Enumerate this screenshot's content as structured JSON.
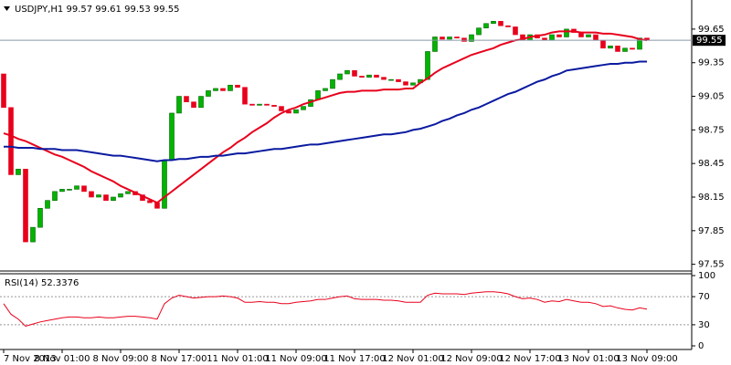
{
  "chart_data": [
    {
      "type": "candlestick",
      "title": "USDJPY,H1  99.57 99.61 99.53 99.55",
      "categories": [
        "7 Nov 2013",
        null,
        null,
        null,
        null,
        null,
        null,
        null,
        "8 Nov 01:00",
        null,
        null,
        null,
        null,
        null,
        null,
        null,
        "8 Nov 09:00",
        null,
        null,
        null,
        null,
        null,
        null,
        null,
        "8 Nov 17:00",
        null,
        null,
        null,
        null,
        null,
        null,
        null,
        "11 Nov 01:00",
        null,
        null,
        null,
        null,
        null,
        null,
        null,
        "11 Nov 09:00",
        null,
        null,
        null,
        null,
        null,
        null,
        null,
        "11 Nov 17:00",
        null,
        null,
        null,
        null,
        null,
        null,
        null,
        "12 Nov 01:00",
        null,
        null,
        null,
        null,
        null,
        null,
        null,
        "12 Nov 09:00",
        null,
        null,
        null,
        null,
        null,
        null,
        null,
        "12 Nov 17:00",
        null,
        null,
        null,
        null,
        null,
        null,
        null,
        "13 Nov 01:00",
        null,
        null,
        null,
        null,
        null,
        null,
        null,
        "13 Nov 09:00"
      ],
      "open": [
        99.25,
        98.95,
        98.35,
        98.4,
        97.75,
        97.88,
        98.05,
        98.12,
        98.2,
        98.22,
        98.22,
        98.25,
        98.2,
        98.15,
        98.17,
        98.12,
        98.15,
        98.18,
        98.2,
        98.17,
        98.12,
        98.1,
        98.05,
        98.48,
        98.9,
        99.05,
        99.0,
        98.95,
        99.05,
        99.1,
        99.12,
        99.1,
        99.15,
        99.13,
        98.98,
        98.97,
        98.98,
        98.97,
        98.96,
        98.92,
        98.9,
        98.93,
        98.96,
        99.02,
        99.1,
        99.12,
        99.2,
        99.25,
        99.28,
        99.23,
        99.22,
        99.24,
        99.22,
        99.2,
        99.2,
        99.18,
        99.15,
        99.17,
        99.2,
        99.45,
        99.58,
        99.56,
        99.58,
        99.57,
        99.54,
        99.6,
        99.66,
        99.7,
        99.72,
        99.68,
        99.67,
        99.6,
        99.55,
        99.6,
        99.57,
        99.55,
        99.6,
        99.58,
        99.65,
        99.62,
        99.58,
        99.6,
        99.55,
        99.48,
        99.5,
        99.45,
        99.48,
        99.47,
        99.57
      ],
      "close": [
        98.95,
        98.35,
        98.4,
        97.75,
        97.88,
        98.05,
        98.12,
        98.2,
        98.22,
        98.22,
        98.25,
        98.2,
        98.15,
        98.17,
        98.12,
        98.15,
        98.18,
        98.2,
        98.17,
        98.12,
        98.1,
        98.05,
        98.48,
        98.9,
        99.05,
        99.0,
        98.95,
        99.05,
        99.1,
        99.12,
        99.1,
        99.15,
        99.13,
        98.98,
        98.97,
        98.98,
        98.97,
        98.96,
        98.92,
        98.9,
        98.93,
        98.96,
        99.02,
        99.1,
        99.12,
        99.2,
        99.25,
        99.28,
        99.23,
        99.22,
        99.24,
        99.22,
        99.2,
        99.2,
        99.18,
        99.15,
        99.17,
        99.2,
        99.45,
        99.58,
        99.56,
        99.58,
        99.57,
        99.54,
        99.6,
        99.66,
        99.7,
        99.72,
        99.68,
        99.67,
        99.6,
        99.55,
        99.6,
        99.57,
        99.55,
        99.6,
        99.58,
        99.65,
        99.62,
        99.58,
        99.6,
        99.55,
        99.48,
        99.5,
        99.45,
        99.48,
        99.47,
        99.57,
        99.55
      ],
      "up_color": "#00b400",
      "down_color": "#e8001c",
      "series": [
        {
          "color": "#e8001c",
          "values": [
            98.72,
            98.7,
            98.67,
            98.65,
            98.62,
            98.59,
            98.56,
            98.53,
            98.51,
            98.48,
            98.45,
            98.42,
            98.38,
            98.35,
            98.32,
            98.29,
            98.25,
            98.22,
            98.19,
            98.16,
            98.13,
            98.1,
            98.15,
            98.2,
            98.25,
            98.3,
            98.35,
            98.4,
            98.45,
            98.5,
            98.55,
            98.59,
            98.64,
            98.68,
            98.73,
            98.77,
            98.81,
            98.86,
            98.9,
            98.93,
            98.95,
            98.98,
            99.0,
            99.02,
            99.04,
            99.06,
            99.08,
            99.09,
            99.09,
            99.1,
            99.1,
            99.1,
            99.11,
            99.11,
            99.11,
            99.12,
            99.12,
            99.17,
            99.21,
            99.26,
            99.3,
            99.33,
            99.36,
            99.39,
            99.42,
            99.44,
            99.46,
            99.48,
            99.51,
            99.53,
            99.55,
            99.56,
            99.58,
            99.59,
            99.6,
            99.62,
            99.63,
            99.63,
            99.63,
            99.62,
            99.62,
            99.62,
            99.61,
            99.61,
            99.6,
            99.59,
            99.58,
            99.56,
            99.55
          ]
        },
        {
          "color": "#0a1aa0",
          "values": [
            98.6,
            98.6,
            98.59,
            98.59,
            98.59,
            98.58,
            98.58,
            98.58,
            98.57,
            98.57,
            98.57,
            98.56,
            98.55,
            98.54,
            98.53,
            98.52,
            98.52,
            98.51,
            98.5,
            98.49,
            98.48,
            98.47,
            98.48,
            98.48,
            98.49,
            98.49,
            98.5,
            98.51,
            98.51,
            98.52,
            98.52,
            98.53,
            98.54,
            98.54,
            98.55,
            98.56,
            98.57,
            98.58,
            98.58,
            98.59,
            98.6,
            98.61,
            98.62,
            98.62,
            98.63,
            98.64,
            98.65,
            98.66,
            98.67,
            98.68,
            98.69,
            98.7,
            98.71,
            98.71,
            98.72,
            98.73,
            98.75,
            98.76,
            98.78,
            98.8,
            98.83,
            98.85,
            98.88,
            98.9,
            98.93,
            98.95,
            98.98,
            99.01,
            99.04,
            99.07,
            99.09,
            99.12,
            99.15,
            99.18,
            99.2,
            99.23,
            99.25,
            99.28,
            99.29,
            99.3,
            99.31,
            99.32,
            99.33,
            99.34,
            99.34,
            99.35,
            99.35,
            99.36,
            99.36
          ]
        }
      ],
      "ylim": [
        97.49,
        99.91
      ],
      "yticks": [
        99.65,
        99.35,
        99.05,
        98.75,
        98.45,
        98.15,
        97.85,
        97.55
      ],
      "current_price": 99.55,
      "grid": false
    },
    {
      "type": "line",
      "title": "RSI(14) 52.3376",
      "color": "#e8001c",
      "values": [
        60,
        45,
        38,
        28,
        31,
        34,
        36,
        38,
        40,
        41,
        41,
        40,
        40,
        41,
        40,
        40,
        41,
        42,
        42,
        41,
        40,
        38,
        60,
        68,
        72,
        70,
        68,
        69,
        70,
        70,
        71,
        70,
        68,
        62,
        62,
        63,
        62,
        62,
        60,
        60,
        62,
        63,
        64,
        66,
        66,
        68,
        70,
        71,
        67,
        66,
        66,
        66,
        65,
        65,
        64,
        62,
        62,
        62,
        72,
        75,
        74,
        74,
        74,
        73,
        75,
        76,
        77,
        77,
        76,
        74,
        70,
        67,
        68,
        66,
        62,
        64,
        63,
        66,
        64,
        62,
        62,
        60,
        56,
        57,
        54,
        52,
        51,
        54,
        52.3376
      ],
      "ylim": [
        0,
        100
      ],
      "yticks": [
        100,
        70,
        30,
        0
      ],
      "grid": true
    }
  ]
}
